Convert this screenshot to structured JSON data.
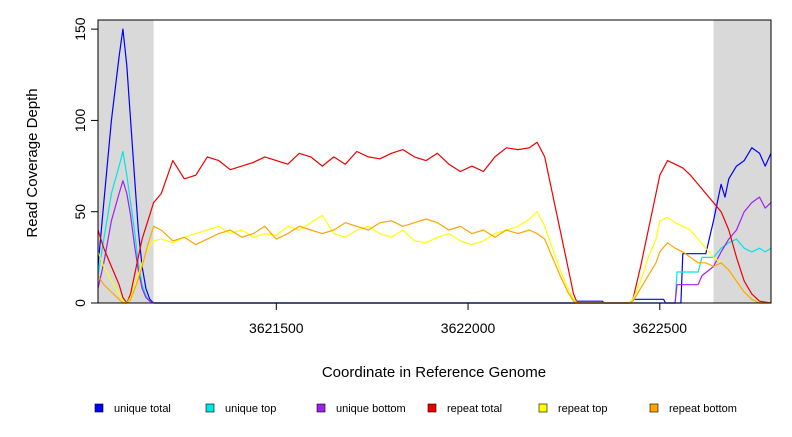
{
  "chart_data": {
    "type": "line",
    "title": "",
    "xlabel": "Coordinate in Reference Genome",
    "ylabel": "Read Coverage Depth",
    "xlim": [
      3621035,
      3622790
    ],
    "ylim": [
      0,
      155
    ],
    "x_ticks": [
      3621500,
      3622000,
      3622500
    ],
    "y_ticks": [
      0,
      50,
      100,
      150
    ],
    "grid": false,
    "shaded_regions": [
      {
        "from": 3621035,
        "to": 3621180,
        "color": "#d9d9d9"
      },
      {
        "from": 3622640,
        "to": 3622790,
        "color": "#d9d9d9"
      }
    ],
    "legend_position": "bottom",
    "series": [
      {
        "name": "unique total",
        "color": "#0000ff",
        "x": [
          3621035,
          3621050,
          3621070,
          3621090,
          3621100,
          3621110,
          3621120,
          3621130,
          3621140,
          3621150,
          3621160,
          3621170,
          3621180,
          3621190,
          3622280,
          3622285,
          3622350,
          3622355,
          3622420,
          3622430,
          3622510,
          3622515,
          3622555,
          3622560,
          3622580,
          3622600,
          3622620,
          3622640,
          3622660,
          3622670,
          3622680,
          3622700,
          3622720,
          3622740,
          3622760,
          3622775,
          3622790
        ],
        "y": [
          20,
          55,
          100,
          135,
          150,
          130,
          100,
          70,
          40,
          20,
          8,
          2,
          0,
          0,
          0,
          1,
          1,
          0,
          0,
          2,
          2,
          0,
          0,
          27,
          27,
          27,
          27,
          45,
          65,
          58,
          68,
          75,
          78,
          85,
          82,
          75,
          82
        ]
      },
      {
        "name": "unique top",
        "color": "#00e5e5",
        "x": [
          3621035,
          3621050,
          3621070,
          3621090,
          3621100,
          3621110,
          3621120,
          3621130,
          3621140,
          3621150,
          3621160,
          3621170,
          3621180,
          3621190,
          3622540,
          3622545,
          3622600,
          3622610,
          3622640,
          3622660,
          3622680,
          3622700,
          3622720,
          3622740,
          3622760,
          3622775,
          3622790
        ],
        "y": [
          15,
          35,
          60,
          75,
          83,
          70,
          55,
          40,
          22,
          10,
          4,
          1,
          0,
          0,
          0,
          17,
          17,
          25,
          25,
          30,
          33,
          35,
          30,
          28,
          30,
          28,
          30
        ]
      },
      {
        "name": "unique bottom",
        "color": "#a020f0",
        "x": [
          3621035,
          3621050,
          3621070,
          3621090,
          3621100,
          3621110,
          3621120,
          3621130,
          3621140,
          3621150,
          3621160,
          3621170,
          3621180,
          3621190,
          3622540,
          3622545,
          3622600,
          3622610,
          3622640,
          3622660,
          3622680,
          3622700,
          3622720,
          3622740,
          3622760,
          3622775,
          3622790
        ],
        "y": [
          8,
          22,
          45,
          60,
          67,
          60,
          48,
          32,
          18,
          8,
          3,
          1,
          0,
          0,
          0,
          10,
          10,
          15,
          20,
          28,
          35,
          40,
          50,
          55,
          58,
          52,
          55
        ]
      },
      {
        "name": "repeat total",
        "color": "#ee0000",
        "x": [
          3621035,
          3621050,
          3621070,
          3621090,
          3621100,
          3621110,
          3621120,
          3621135,
          3621150,
          3621165,
          3621180,
          3621200,
          3621230,
          3621260,
          3621290,
          3621320,
          3621350,
          3621380,
          3621410,
          3621440,
          3621470,
          3621500,
          3621530,
          3621560,
          3621590,
          3621620,
          3621650,
          3621680,
          3621710,
          3621740,
          3621770,
          3621800,
          3621830,
          3621860,
          3621890,
          3621920,
          3621950,
          3621980,
          3622010,
          3622040,
          3622070,
          3622100,
          3622130,
          3622160,
          3622180,
          3622200,
          3622220,
          3622240,
          3622260,
          3622275,
          3622285,
          3622420,
          3622430,
          3622450,
          3622470,
          3622490,
          3622500,
          3622520,
          3622540,
          3622560,
          3622580,
          3622600,
          3622620,
          3622640,
          3622660,
          3622680,
          3622700,
          3622720,
          3622740,
          3622760,
          3622790
        ],
        "y": [
          40,
          30,
          20,
          10,
          3,
          0,
          5,
          20,
          35,
          45,
          55,
          60,
          78,
          68,
          70,
          80,
          78,
          73,
          75,
          77,
          80,
          78,
          76,
          82,
          80,
          75,
          80,
          76,
          83,
          80,
          79,
          82,
          84,
          80,
          78,
          82,
          76,
          72,
          75,
          72,
          80,
          85,
          84,
          85,
          88,
          80,
          60,
          40,
          20,
          5,
          0,
          0,
          2,
          20,
          40,
          60,
          70,
          78,
          76,
          74,
          70,
          65,
          60,
          55,
          50,
          40,
          25,
          12,
          5,
          1,
          0
        ]
      },
      {
        "name": "repeat top",
        "color": "#ffff00",
        "x": [
          3621035,
          3621050,
          3621070,
          3621090,
          3621100,
          3621110,
          3621120,
          3621135,
          3621150,
          3621165,
          3621180,
          3621200,
          3621230,
          3621260,
          3621290,
          3621320,
          3621350,
          3621380,
          3621410,
          3621440,
          3621470,
          3621500,
          3621530,
          3621560,
          3621590,
          3621620,
          3621650,
          3621680,
          3621710,
          3621740,
          3621770,
          3621800,
          3621830,
          3621860,
          3621890,
          3621920,
          3621950,
          3621980,
          3622010,
          3622040,
          3622070,
          3622100,
          3622130,
          3622160,
          3622180,
          3622200,
          3622220,
          3622240,
          3622260,
          3622275,
          3622285,
          3622420,
          3622430,
          3622450,
          3622470,
          3622490,
          3622500,
          3622520,
          3622540,
          3622560,
          3622580,
          3622600,
          3622620,
          3622640,
          3622660,
          3622680,
          3622700,
          3622720,
          3622740,
          3622760,
          3622790
        ],
        "y": [
          28,
          20,
          12,
          5,
          1,
          0,
          3,
          12,
          22,
          30,
          34,
          35,
          33,
          36,
          38,
          40,
          42,
          38,
          40,
          36,
          38,
          37,
          42,
          40,
          44,
          48,
          38,
          36,
          40,
          42,
          38,
          36,
          40,
          34,
          33,
          36,
          38,
          34,
          32,
          34,
          38,
          40,
          42,
          46,
          50,
          42,
          30,
          18,
          8,
          2,
          0,
          0,
          2,
          12,
          25,
          35,
          45,
          47,
          44,
          42,
          40,
          35,
          30,
          25,
          22,
          18,
          12,
          6,
          2,
          0,
          0
        ]
      },
      {
        "name": "repeat bottom",
        "color": "#ffa500",
        "x": [
          3621035,
          3621050,
          3621070,
          3621090,
          3621100,
          3621110,
          3621120,
          3621135,
          3621150,
          3621165,
          3621180,
          3621200,
          3621230,
          3621260,
          3621290,
          3621320,
          3621350,
          3621380,
          3621410,
          3621440,
          3621470,
          3621500,
          3621530,
          3621560,
          3621590,
          3621620,
          3621650,
          3621680,
          3621710,
          3621740,
          3621770,
          3621800,
          3621830,
          3621860,
          3621890,
          3621920,
          3621950,
          3621980,
          3622010,
          3622040,
          3622070,
          3622100,
          3622130,
          3622160,
          3622180,
          3622200,
          3622220,
          3622240,
          3622260,
          3622275,
          3622285,
          3622420,
          3622430,
          3622450,
          3622470,
          3622490,
          3622500,
          3622520,
          3622540,
          3622560,
          3622580,
          3622600,
          3622620,
          3622640,
          3622660,
          3622680,
          3622700,
          3622720,
          3622740,
          3622760,
          3622790
        ],
        "y": [
          15,
          10,
          6,
          2,
          0,
          0,
          2,
          10,
          20,
          32,
          42,
          40,
          34,
          36,
          32,
          35,
          38,
          40,
          36,
          38,
          42,
          35,
          38,
          42,
          40,
          38,
          40,
          44,
          42,
          40,
          44,
          45,
          42,
          44,
          46,
          44,
          40,
          42,
          38,
          40,
          36,
          40,
          38,
          40,
          38,
          35,
          25,
          15,
          6,
          1,
          0,
          0,
          1,
          8,
          15,
          22,
          28,
          33,
          30,
          28,
          25,
          22,
          22,
          20,
          22,
          18,
          12,
          6,
          2,
          0,
          0
        ]
      }
    ]
  }
}
